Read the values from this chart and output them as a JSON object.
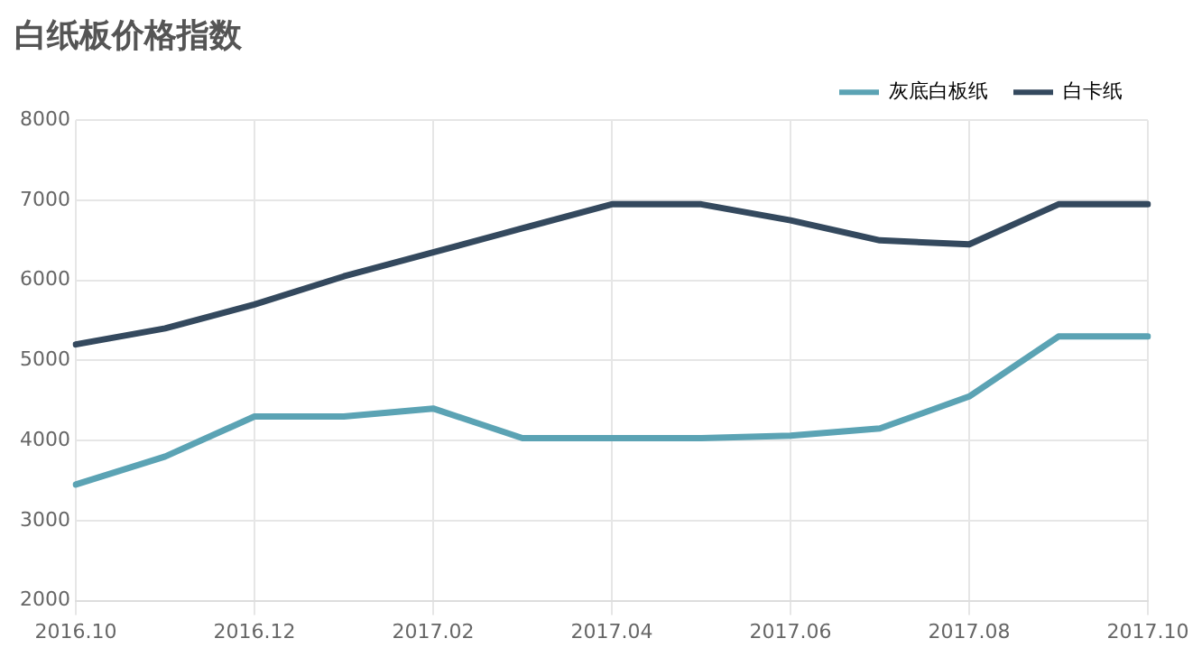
{
  "chart_data": {
    "type": "line",
    "title": "白纸板价格指数",
    "categories": [
      "2016.10",
      null,
      "2016.12",
      null,
      "2017.02",
      null,
      "2017.04",
      null,
      "2017.06",
      null,
      "2017.08",
      null,
      "2017.10"
    ],
    "series": [
      {
        "name": "灰底白板纸",
        "color": "#5ba3b4",
        "values": [
          3450,
          3800,
          4300,
          4300,
          4400,
          4030,
          4030,
          4030,
          4060,
          4150,
          4550,
          5300,
          5300
        ]
      },
      {
        "name": "白卡纸",
        "color": "#34495e",
        "values": [
          5200,
          5400,
          5700,
          6050,
          6350,
          6650,
          6950,
          6950,
          6750,
          6500,
          6450,
          6950,
          6950
        ]
      }
    ],
    "ylim": [
      2000,
      8000
    ],
    "yticks": [
      2000,
      3000,
      4000,
      5000,
      6000,
      7000,
      8000
    ],
    "grid": true,
    "legend": "top right",
    "marker": "none",
    "line_style": "solid"
  }
}
